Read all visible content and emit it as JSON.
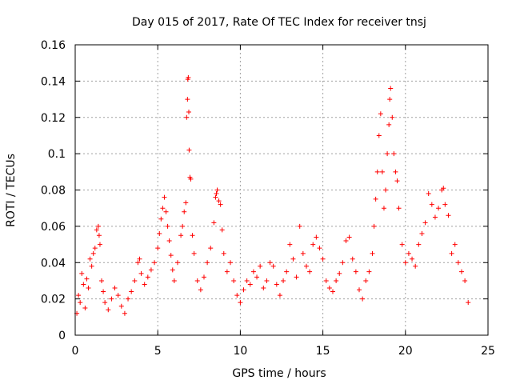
{
  "chart_data": {
    "type": "scatter",
    "title": "Day 015 of 2017, Rate Of TEC Index for receiver tnsj",
    "xlabel": "GPS time / hours",
    "ylabel": "ROTI / TECUs",
    "xlim": [
      0,
      25
    ],
    "ylim": [
      0,
      0.16
    ],
    "x_ticks": [
      0,
      5,
      10,
      15,
      20,
      25
    ],
    "y_ticks": [
      0,
      0.02,
      0.04,
      0.06,
      0.08,
      0.1,
      0.12,
      0.14,
      0.16
    ],
    "x_tick_labels": [
      "0",
      "5",
      "10",
      "15",
      "20",
      "25"
    ],
    "y_tick_labels": [
      "0",
      "0.02",
      "0.04",
      "0.06",
      "0.08",
      "0.1",
      "0.12",
      "0.14",
      "0.16"
    ],
    "grid": true,
    "marker": "+",
    "color": "#ff0000",
    "series": [
      {
        "name": "ROTI",
        "points": [
          [
            0.1,
            0.012
          ],
          [
            0.2,
            0.022
          ],
          [
            0.3,
            0.018
          ],
          [
            0.4,
            0.034
          ],
          [
            0.5,
            0.028
          ],
          [
            0.6,
            0.015
          ],
          [
            0.7,
            0.031
          ],
          [
            0.8,
            0.026
          ],
          [
            0.9,
            0.042
          ],
          [
            1.0,
            0.038
          ],
          [
            1.1,
            0.045
          ],
          [
            1.2,
            0.048
          ],
          [
            1.3,
            0.058
          ],
          [
            1.4,
            0.06
          ],
          [
            1.45,
            0.055
          ],
          [
            1.5,
            0.05
          ],
          [
            1.6,
            0.03
          ],
          [
            1.7,
            0.024
          ],
          [
            1.8,
            0.018
          ],
          [
            2.0,
            0.014
          ],
          [
            2.2,
            0.02
          ],
          [
            2.4,
            0.026
          ],
          [
            2.6,
            0.022
          ],
          [
            2.8,
            0.016
          ],
          [
            3.0,
            0.012
          ],
          [
            3.2,
            0.02
          ],
          [
            3.4,
            0.024
          ],
          [
            3.6,
            0.03
          ],
          [
            3.8,
            0.04
          ],
          [
            3.9,
            0.042
          ],
          [
            4.0,
            0.034
          ],
          [
            4.2,
            0.028
          ],
          [
            4.4,
            0.032
          ],
          [
            4.6,
            0.036
          ],
          [
            4.8,
            0.04
          ],
          [
            5.0,
            0.048
          ],
          [
            5.1,
            0.056
          ],
          [
            5.2,
            0.064
          ],
          [
            5.3,
            0.07
          ],
          [
            5.4,
            0.076
          ],
          [
            5.5,
            0.068
          ],
          [
            5.6,
            0.06
          ],
          [
            5.7,
            0.052
          ],
          [
            5.8,
            0.044
          ],
          [
            5.9,
            0.036
          ],
          [
            6.0,
            0.03
          ],
          [
            6.2,
            0.04
          ],
          [
            6.4,
            0.055
          ],
          [
            6.5,
            0.06
          ],
          [
            6.6,
            0.068
          ],
          [
            6.7,
            0.073
          ],
          [
            6.75,
            0.12
          ],
          [
            6.8,
            0.13
          ],
          [
            6.82,
            0.141
          ],
          [
            6.85,
            0.142
          ],
          [
            6.88,
            0.123
          ],
          [
            6.9,
            0.102
          ],
          [
            6.95,
            0.087
          ],
          [
            7.0,
            0.086
          ],
          [
            7.1,
            0.055
          ],
          [
            7.2,
            0.045
          ],
          [
            7.4,
            0.03
          ],
          [
            7.6,
            0.025
          ],
          [
            7.8,
            0.032
          ],
          [
            8.0,
            0.04
          ],
          [
            8.2,
            0.048
          ],
          [
            8.4,
            0.062
          ],
          [
            8.5,
            0.076
          ],
          [
            8.55,
            0.078
          ],
          [
            8.6,
            0.08
          ],
          [
            8.7,
            0.074
          ],
          [
            8.8,
            0.072
          ],
          [
            8.9,
            0.058
          ],
          [
            9.0,
            0.045
          ],
          [
            9.2,
            0.035
          ],
          [
            9.4,
            0.04
          ],
          [
            9.6,
            0.03
          ],
          [
            9.8,
            0.022
          ],
          [
            10.0,
            0.018
          ],
          [
            10.2,
            0.025
          ],
          [
            10.4,
            0.03
          ],
          [
            10.6,
            0.028
          ],
          [
            10.8,
            0.035
          ],
          [
            11.0,
            0.032
          ],
          [
            11.2,
            0.038
          ],
          [
            11.4,
            0.026
          ],
          [
            11.6,
            0.03
          ],
          [
            11.8,
            0.04
          ],
          [
            12.0,
            0.038
          ],
          [
            12.2,
            0.028
          ],
          [
            12.4,
            0.022
          ],
          [
            12.6,
            0.03
          ],
          [
            12.8,
            0.035
          ],
          [
            13.0,
            0.05
          ],
          [
            13.2,
            0.042
          ],
          [
            13.4,
            0.032
          ],
          [
            13.6,
            0.06
          ],
          [
            13.8,
            0.045
          ],
          [
            14.0,
            0.038
          ],
          [
            14.2,
            0.035
          ],
          [
            14.4,
            0.05
          ],
          [
            14.6,
            0.054
          ],
          [
            14.8,
            0.048
          ],
          [
            15.0,
            0.042
          ],
          [
            15.2,
            0.03
          ],
          [
            15.4,
            0.026
          ],
          [
            15.6,
            0.024
          ],
          [
            15.8,
            0.03
          ],
          [
            16.0,
            0.034
          ],
          [
            16.2,
            0.04
          ],
          [
            16.4,
            0.052
          ],
          [
            16.6,
            0.054
          ],
          [
            16.8,
            0.042
          ],
          [
            17.0,
            0.035
          ],
          [
            17.2,
            0.025
          ],
          [
            17.4,
            0.02
          ],
          [
            17.6,
            0.03
          ],
          [
            17.8,
            0.035
          ],
          [
            18.0,
            0.045
          ],
          [
            18.1,
            0.06
          ],
          [
            18.2,
            0.075
          ],
          [
            18.3,
            0.09
          ],
          [
            18.4,
            0.11
          ],
          [
            18.5,
            0.122
          ],
          [
            18.6,
            0.09
          ],
          [
            18.7,
            0.07
          ],
          [
            18.8,
            0.08
          ],
          [
            18.9,
            0.1
          ],
          [
            19.0,
            0.116
          ],
          [
            19.05,
            0.13
          ],
          [
            19.1,
            0.136
          ],
          [
            19.2,
            0.12
          ],
          [
            19.3,
            0.1
          ],
          [
            19.4,
            0.09
          ],
          [
            19.5,
            0.085
          ],
          [
            19.6,
            0.07
          ],
          [
            19.8,
            0.05
          ],
          [
            20.0,
            0.04
          ],
          [
            20.2,
            0.045
          ],
          [
            20.4,
            0.042
          ],
          [
            20.6,
            0.038
          ],
          [
            20.8,
            0.05
          ],
          [
            21.0,
            0.056
          ],
          [
            21.2,
            0.062
          ],
          [
            21.4,
            0.078
          ],
          [
            21.6,
            0.072
          ],
          [
            21.8,
            0.065
          ],
          [
            22.0,
            0.07
          ],
          [
            22.2,
            0.08
          ],
          [
            22.3,
            0.081
          ],
          [
            22.4,
            0.072
          ],
          [
            22.6,
            0.066
          ],
          [
            22.8,
            0.045
          ],
          [
            23.0,
            0.05
          ],
          [
            23.2,
            0.04
          ],
          [
            23.4,
            0.035
          ],
          [
            23.6,
            0.03
          ],
          [
            23.8,
            0.018
          ]
        ]
      }
    ]
  }
}
